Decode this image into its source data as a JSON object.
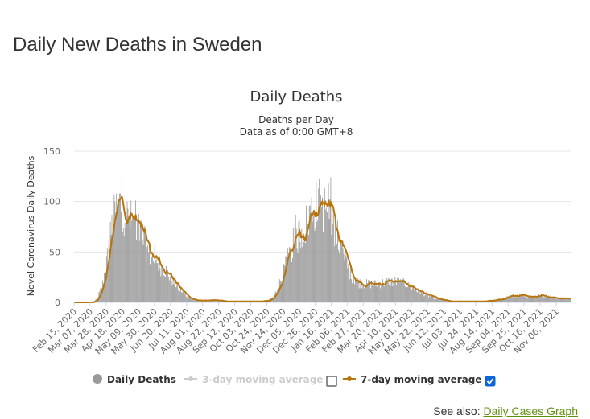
{
  "page": {
    "title": "Daily New Deaths in Sweden",
    "see_also_label": "See also:",
    "see_also_link": "Daily Cases Graph"
  },
  "chart_data": {
    "type": "bar",
    "title": "Daily Deaths",
    "subtitle_line1": "Deaths per Day",
    "subtitle_line2": "Data as of 0:00 GMT+8",
    "ylabel": "Novel Coronavirus Daily Deaths",
    "xlabel": "",
    "ylim": [
      0,
      150
    ],
    "yticks": [
      0,
      50,
      100,
      150
    ],
    "grid": true,
    "legend_position": "bottom",
    "x_start": "2020-02-15",
    "x_end": "2021-11-25",
    "xticks": [
      "Feb 15, 2020",
      "Mar 07, 2020",
      "Mar 28, 2020",
      "Apr 18, 2020",
      "May 09, 2020",
      "May 30, 2020",
      "Jun 20, 2020",
      "Jul 11, 2020",
      "Aug 01, 2020",
      "Aug 22, 2020",
      "Sep 12, 2020",
      "Oct 03, 2020",
      "Oct 24, 2020",
      "Nov 14, 2020",
      "Dec 05, 2020",
      "Dec 26, 2020",
      "Jan 16, 2021",
      "Feb 06, 2021",
      "Feb 27, 2021",
      "Mar 20, 2021",
      "Apr 10, 2021",
      "May 01, 2021",
      "May 22, 2021",
      "Jun 12, 2021",
      "Jul 03, 2021",
      "Jul 24, 2021",
      "Aug 14, 2021",
      "Sep 04, 2021",
      "Sep 25, 2021",
      "Oct 16, 2021",
      "Nov 06, 2021"
    ],
    "series": [
      {
        "name": "Daily Deaths",
        "color": "#999999",
        "kind": "bar",
        "visible": true,
        "anchors": [
          [
            "2020-02-15",
            0
          ],
          [
            "2020-03-10",
            0
          ],
          [
            "2020-03-15",
            3
          ],
          [
            "2020-03-22",
            15
          ],
          [
            "2020-03-28",
            40
          ],
          [
            "2020-04-03",
            70
          ],
          [
            "2020-04-08",
            88
          ],
          [
            "2020-04-13",
            98
          ],
          [
            "2020-04-18",
            95
          ],
          [
            "2020-04-24",
            84
          ],
          [
            "2020-04-30",
            80
          ],
          [
            "2020-05-08",
            74
          ],
          [
            "2020-05-15",
            63
          ],
          [
            "2020-05-22",
            50
          ],
          [
            "2020-05-30",
            42
          ],
          [
            "2020-06-06",
            37
          ],
          [
            "2020-06-13",
            32
          ],
          [
            "2020-06-20",
            24
          ],
          [
            "2020-06-27",
            17
          ],
          [
            "2020-07-04",
            11
          ],
          [
            "2020-07-11",
            6
          ],
          [
            "2020-07-18",
            3
          ],
          [
            "2020-07-25",
            2
          ],
          [
            "2020-08-01",
            2
          ],
          [
            "2020-08-15",
            2
          ],
          [
            "2020-09-01",
            1
          ],
          [
            "2020-09-15",
            1
          ],
          [
            "2020-10-01",
            1
          ],
          [
            "2020-10-15",
            1
          ],
          [
            "2020-10-25",
            2
          ],
          [
            "2020-11-01",
            5
          ],
          [
            "2020-11-07",
            15
          ],
          [
            "2020-11-14",
            30
          ],
          [
            "2020-11-21",
            45
          ],
          [
            "2020-11-28",
            60
          ],
          [
            "2020-12-05",
            68
          ],
          [
            "2020-12-12",
            74
          ],
          [
            "2020-12-19",
            88
          ],
          [
            "2020-12-26",
            96
          ],
          [
            "2021-01-02",
            98
          ],
          [
            "2021-01-09",
            92
          ],
          [
            "2021-01-16",
            85
          ],
          [
            "2021-01-22",
            68
          ],
          [
            "2021-01-29",
            52
          ],
          [
            "2021-02-06",
            35
          ],
          [
            "2021-02-13",
            25
          ],
          [
            "2021-02-20",
            20
          ],
          [
            "2021-02-27",
            18
          ],
          [
            "2021-03-06",
            18
          ],
          [
            "2021-03-13",
            18
          ],
          [
            "2021-03-20",
            19
          ],
          [
            "2021-03-27",
            20
          ],
          [
            "2021-04-03",
            21
          ],
          [
            "2021-04-10",
            20
          ],
          [
            "2021-04-17",
            19
          ],
          [
            "2021-04-24",
            18
          ],
          [
            "2021-05-01",
            15
          ],
          [
            "2021-05-08",
            12
          ],
          [
            "2021-05-15",
            9
          ],
          [
            "2021-05-22",
            7
          ],
          [
            "2021-05-29",
            5
          ],
          [
            "2021-06-05",
            3
          ],
          [
            "2021-06-12",
            2
          ],
          [
            "2021-06-19",
            1
          ],
          [
            "2021-07-01",
            1
          ],
          [
            "2021-07-15",
            1
          ],
          [
            "2021-07-24",
            1
          ],
          [
            "2021-08-01",
            1
          ],
          [
            "2021-08-14",
            2
          ],
          [
            "2021-08-25",
            3
          ],
          [
            "2021-09-04",
            5
          ],
          [
            "2021-09-12",
            7
          ],
          [
            "2021-09-20",
            8
          ],
          [
            "2021-09-25",
            7
          ],
          [
            "2021-10-02",
            6
          ],
          [
            "2021-10-09",
            6
          ],
          [
            "2021-10-16",
            7
          ],
          [
            "2021-10-23",
            6
          ],
          [
            "2021-10-30",
            5
          ],
          [
            "2021-11-06",
            4
          ],
          [
            "2021-11-15",
            4
          ],
          [
            "2021-11-25",
            3
          ]
        ]
      },
      {
        "name": "3-day moving average",
        "color": "#cccccc",
        "kind": "line",
        "visible": false
      },
      {
        "name": "7-day moving average",
        "color": "#b8750b",
        "kind": "line",
        "visible": true,
        "window": 7
      }
    ]
  }
}
